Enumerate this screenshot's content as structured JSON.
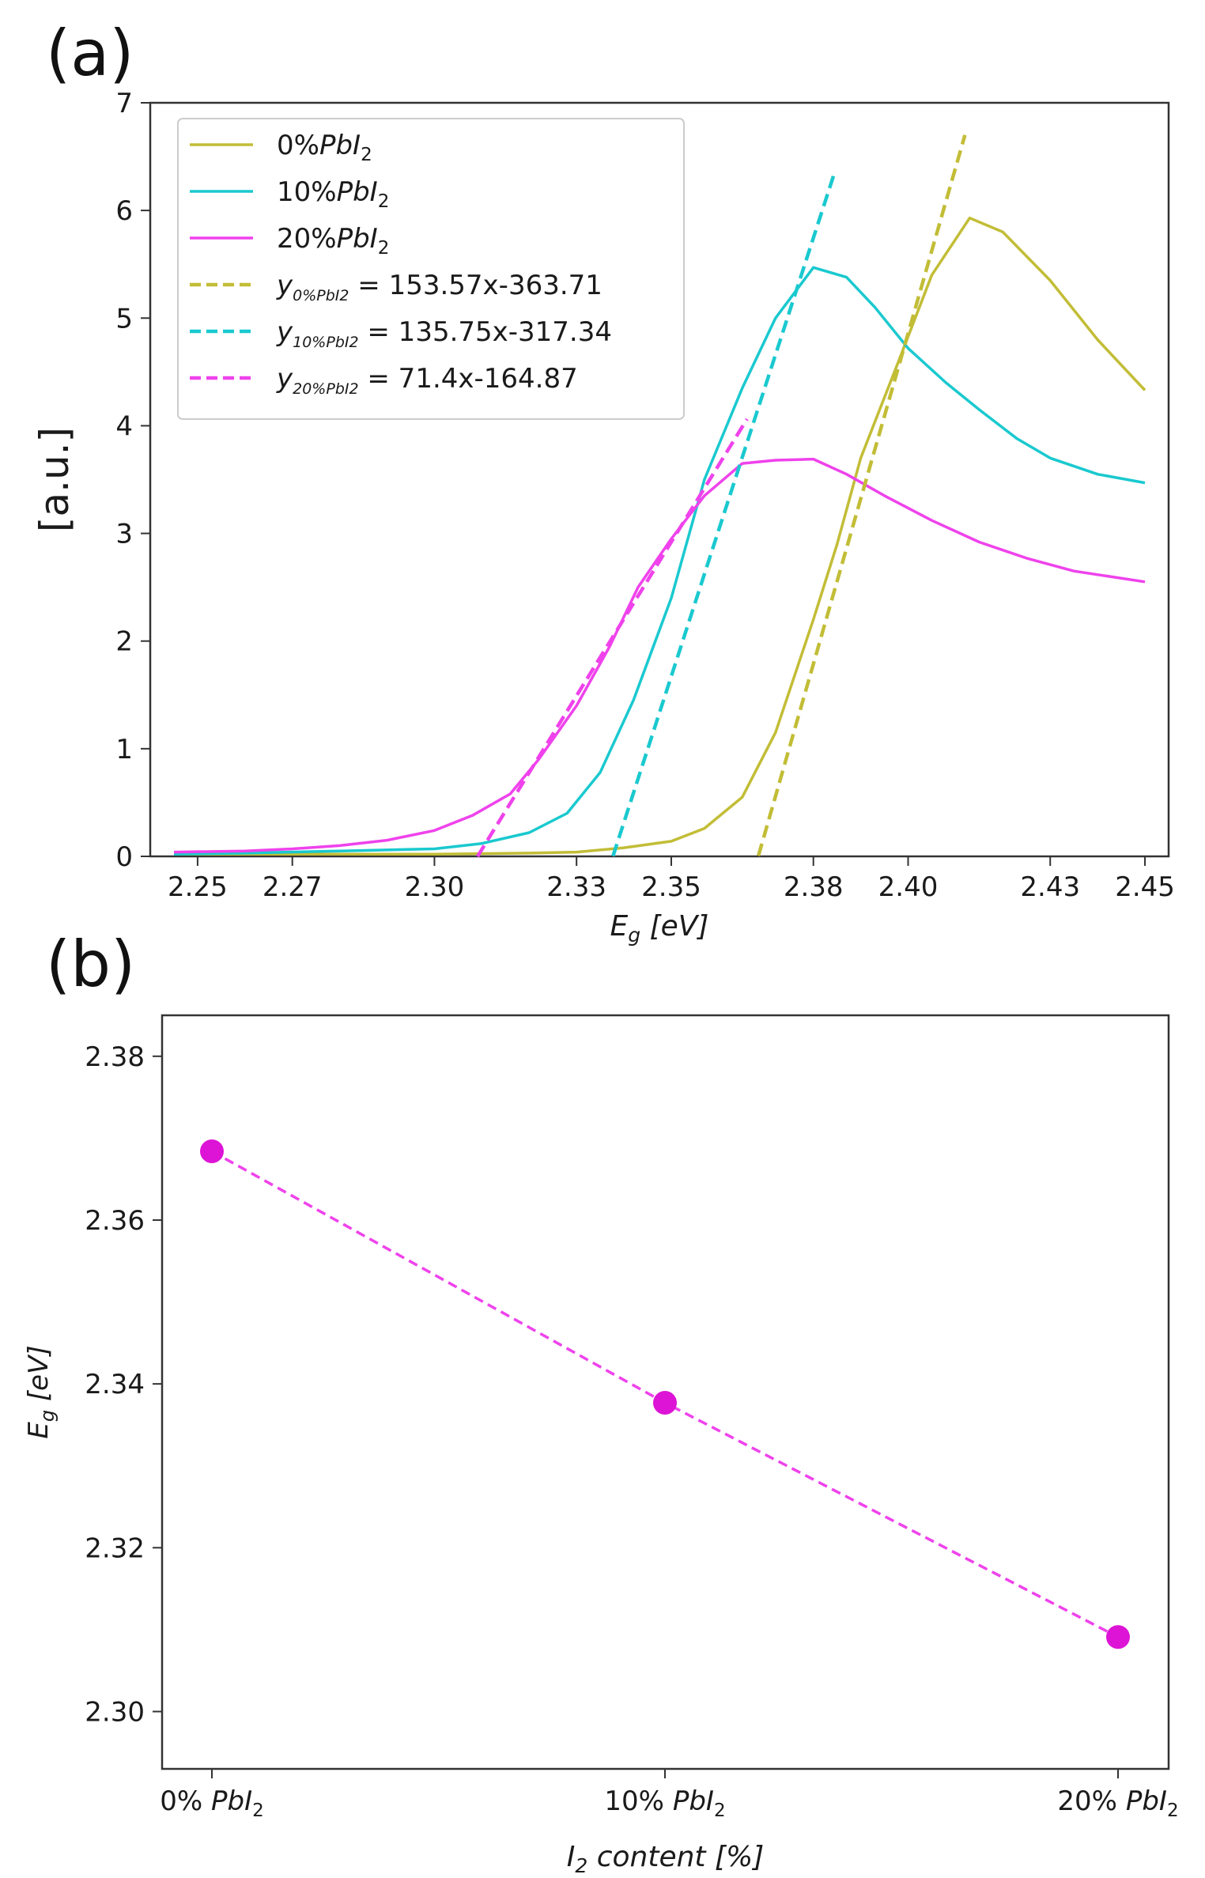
{
  "panels": {
    "a": {
      "label": "(a)"
    },
    "b": {
      "label": "(b)"
    }
  },
  "colors": {
    "olive": "#c2bd36",
    "cyan": "#1ac9cf",
    "magenta": "#ef42ec",
    "marker": "#dd14d6"
  },
  "chart_data": [
    {
      "type": "line",
      "panel": "(a)",
      "xlabel_main": "E",
      "xlabel_sub": "g",
      "xlabel_rest": " [eV]",
      "ylabel": "[a.u.]",
      "xlim": [
        2.24,
        2.455
      ],
      "ylim": [
        0,
        7
      ],
      "xticks": [
        2.25,
        2.27,
        2.3,
        2.33,
        2.35,
        2.38,
        2.4,
        2.43,
        2.45
      ],
      "xticklabels": [
        "2.25",
        "2.27",
        "2.30",
        "2.33",
        "2.35",
        "2.38",
        "2.40",
        "2.43",
        "2.45"
      ],
      "yticks": [
        0,
        1,
        2,
        3,
        4,
        5,
        6,
        7
      ],
      "yticklabels": [
        "0",
        "1",
        "2",
        "3",
        "4",
        "5",
        "6",
        "7"
      ],
      "legend_position": "top-left",
      "series": [
        {
          "name": "0%PbI2",
          "legend_main": "0%",
          "legend_italic": "PbI",
          "legend_sub": "2",
          "color_key": "olive",
          "style": "solid",
          "x": [
            2.245,
            2.26,
            2.28,
            2.3,
            2.32,
            2.33,
            2.34,
            2.35,
            2.357,
            2.365,
            2.372,
            2.38,
            2.385,
            2.39,
            2.398,
            2.405,
            2.413,
            2.42,
            2.43,
            2.44,
            2.45
          ],
          "y": [
            0.02,
            0.02,
            0.02,
            0.02,
            0.03,
            0.04,
            0.08,
            0.14,
            0.26,
            0.55,
            1.15,
            2.2,
            2.9,
            3.7,
            4.6,
            5.4,
            5.93,
            5.8,
            5.35,
            4.8,
            4.33
          ]
        },
        {
          "name": "10%PbI2",
          "legend_main": "10%",
          "legend_italic": "PbI",
          "legend_sub": "2",
          "color_key": "cyan",
          "style": "solid",
          "x": [
            2.245,
            2.26,
            2.28,
            2.3,
            2.31,
            2.32,
            2.328,
            2.335,
            2.342,
            2.35,
            2.357,
            2.365,
            2.372,
            2.38,
            2.387,
            2.393,
            2.4,
            2.408,
            2.415,
            2.423,
            2.43,
            2.44,
            2.45
          ],
          "y": [
            0.02,
            0.03,
            0.05,
            0.07,
            0.12,
            0.22,
            0.4,
            0.78,
            1.45,
            2.4,
            3.5,
            4.35,
            5.0,
            5.47,
            5.38,
            5.1,
            4.72,
            4.4,
            4.15,
            3.88,
            3.7,
            3.55,
            3.47
          ]
        },
        {
          "name": "20%PbI2",
          "legend_main": "20%",
          "legend_italic": "PbI",
          "legend_sub": "2",
          "color_key": "magenta",
          "style": "solid",
          "x": [
            2.245,
            2.26,
            2.27,
            2.28,
            2.29,
            2.3,
            2.308,
            2.316,
            2.322,
            2.33,
            2.337,
            2.343,
            2.35,
            2.357,
            2.365,
            2.372,
            2.38,
            2.387,
            2.395,
            2.405,
            2.415,
            2.425,
            2.435,
            2.45
          ],
          "y": [
            0.04,
            0.05,
            0.07,
            0.1,
            0.15,
            0.24,
            0.38,
            0.58,
            0.9,
            1.4,
            1.95,
            2.5,
            2.95,
            3.35,
            3.65,
            3.68,
            3.69,
            3.55,
            3.35,
            3.12,
            2.92,
            2.77,
            2.65,
            2.55
          ]
        },
        {
          "name": "y0%PbI2 = 153.57x-363.71",
          "legend_sub": "0%PbI2",
          "legend_eq": " = 153.57x-363.71",
          "color_key": "olive",
          "style": "dashed",
          "slope": 153.57,
          "intercept": -363.71,
          "x_range": [
            2.3684,
            2.412
          ]
        },
        {
          "name": "y10%PbI2 = 135.75x-317.34",
          "legend_sub": "10%PbI2",
          "legend_eq": " = 135.75x-317.34",
          "color_key": "cyan",
          "style": "dashed",
          "slope": 135.75,
          "intercept": -317.34,
          "x_range": [
            2.3377,
            2.3845
          ]
        },
        {
          "name": "y20%PbI2 = 71.4x-164.87",
          "legend_sub": "20%PbI2",
          "legend_eq": " = 71.4x-164.87",
          "color_key": "magenta",
          "style": "dashed",
          "slope": 71.4,
          "intercept": -164.87,
          "x_range": [
            2.3091,
            2.366
          ]
        }
      ]
    },
    {
      "type": "scatter",
      "panel": "(b)",
      "xlabel_main": "I",
      "xlabel_sub": "2",
      "xlabel_rest": " content [%]",
      "ylabel_main": "E",
      "ylabel_sub": "g",
      "ylabel_rest": " [eV]",
      "ylim": [
        2.293,
        2.385
      ],
      "yticks": [
        2.3,
        2.32,
        2.34,
        2.36,
        2.38
      ],
      "yticklabels": [
        "2.30",
        "2.32",
        "2.34",
        "2.36",
        "2.38"
      ],
      "categories": [
        "0% PbI2",
        "10% PbI2",
        "20% PbI2"
      ],
      "category_main": [
        "0%",
        "10%",
        "20%"
      ],
      "category_italic": "PbI",
      "category_sub": "2",
      "values": [
        2.3684,
        2.3377,
        2.3091
      ],
      "color_key": "marker",
      "connector": "dashed"
    }
  ]
}
